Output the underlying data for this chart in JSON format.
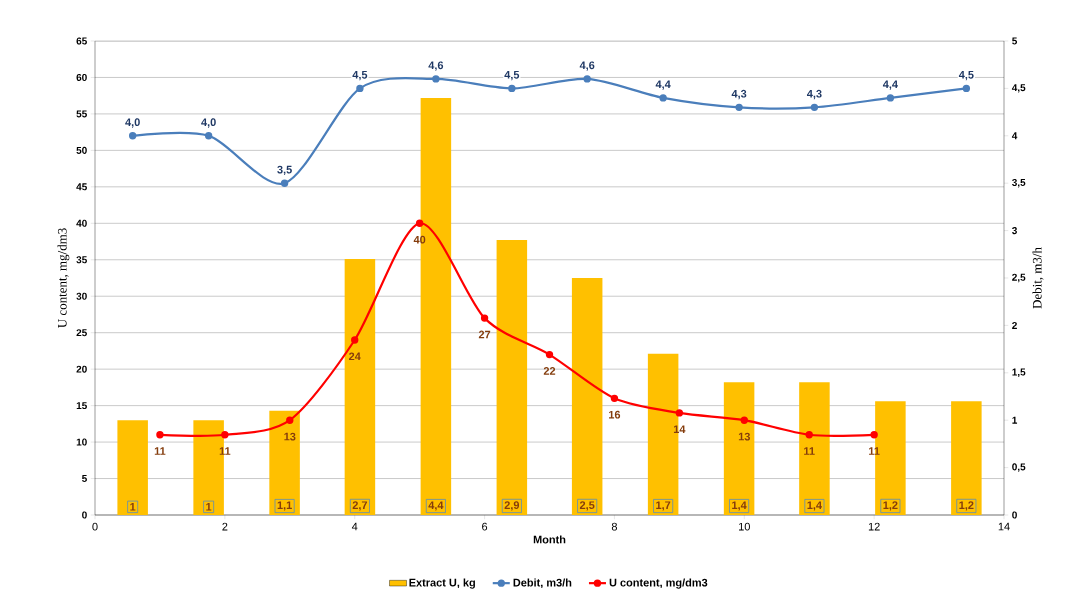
{
  "chart_data": {
    "type": "bar",
    "xlabel": "Month",
    "ylabel": "U content, mg/dm3",
    "y2label": "Debit, m3/h",
    "xlim": [
      0,
      14
    ],
    "xticks": [
      0,
      2,
      4,
      6,
      8,
      10,
      12,
      14
    ],
    "ylim": [
      0,
      65
    ],
    "yticks": [
      0,
      5,
      10,
      15,
      20,
      25,
      30,
      35,
      40,
      45,
      50,
      55,
      60,
      65
    ],
    "y2lim": [
      0,
      5
    ],
    "y2ticks": [
      0,
      {
        "value": 0.5,
        "label": "0,5"
      },
      1,
      {
        "value": 1.5,
        "label": "1,5"
      },
      2,
      {
        "value": 2.5,
        "label": "2,5"
      },
      3,
      {
        "value": 3.5,
        "label": "3,5"
      },
      4,
      {
        "value": 4.5,
        "label": "4,5"
      },
      5
    ],
    "grid": "y",
    "legend": "bottom",
    "series": [
      {
        "name": "Extract U, kg",
        "axis": "y2",
        "color": "#ffc000",
        "x": [
          0.58,
          1.75,
          2.92,
          4.08,
          5.25,
          6.42,
          7.58,
          8.75,
          9.92,
          11.08,
          12.25,
          13.42
        ],
        "values": [
          1,
          1,
          1.1,
          2.7,
          4.4,
          2.9,
          2.5,
          1.7,
          1.4,
          1.4,
          1.2,
          1.2
        ],
        "value_labels": [
          "1",
          "1",
          "1,1",
          "2,7",
          "4,4",
          "2,9",
          "2,5",
          "1,7",
          "1,4",
          "1,4",
          "1,2",
          "1,2"
        ]
      },
      {
        "name": "Debit, m3/h",
        "type": "line",
        "axis": "y2",
        "color": "#4a7ebb",
        "marker": "circle",
        "x": [
          0.58,
          1.75,
          2.92,
          4.08,
          5.25,
          6.42,
          7.58,
          8.75,
          9.92,
          11.08,
          12.25,
          13.42
        ],
        "values": [
          4.0,
          4.0,
          3.5,
          4.5,
          4.6,
          4.5,
          4.6,
          4.4,
          4.3,
          4.3,
          4.4,
          4.5
        ],
        "value_labels": [
          "4,0",
          "4,0",
          "3,5",
          "4,5",
          "4,6",
          "4,5",
          "4,6",
          "4,4",
          "4,3",
          "4,3",
          "4,4",
          "4,5"
        ]
      },
      {
        "name": "U content, mg/dm3",
        "type": "line",
        "color": "#ff0000",
        "marker": "circle",
        "x": [
          1,
          2,
          3,
          4,
          5,
          6,
          7,
          8,
          9,
          10,
          11,
          12
        ],
        "values": [
          11,
          11,
          13,
          24,
          40,
          27,
          22,
          16,
          14,
          13,
          11,
          11
        ],
        "value_labels": [
          "11",
          "11",
          "13",
          "24",
          "40",
          "27",
          "22",
          "16",
          "14",
          "13",
          "11",
          "11"
        ]
      }
    ]
  }
}
